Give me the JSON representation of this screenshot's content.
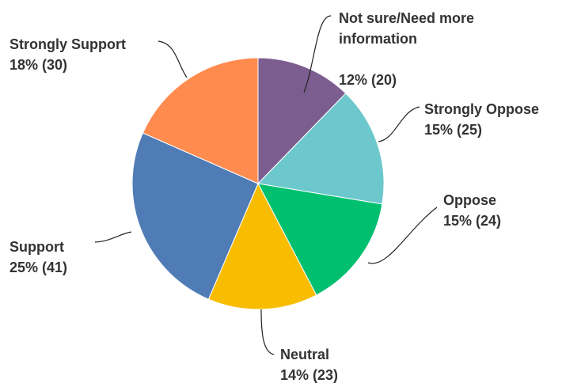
{
  "chart_data": {
    "type": "pie",
    "slices": [
      {
        "label_lines": [
          "Not sure/Need more",
          "information"
        ],
        "value_text": "12% (20)",
        "percent": 12,
        "count": 20,
        "color": "#7b5e8f"
      },
      {
        "label_lines": [
          "Strongly Oppose"
        ],
        "value_text": "15% (25)",
        "percent": 15,
        "count": 25,
        "color": "#6cc8cc"
      },
      {
        "label_lines": [
          "Oppose"
        ],
        "value_text": "15% (24)",
        "percent": 15,
        "count": 24,
        "color": "#00bf6f"
      },
      {
        "label_lines": [
          "Neutral"
        ],
        "value_text": "14% (23)",
        "percent": 14,
        "count": 23,
        "color": "#f8bd00"
      },
      {
        "label_lines": [
          "Support"
        ],
        "value_text": "25% (41)",
        "percent": 25,
        "count": 41,
        "color": "#507cb6"
      },
      {
        "label_lines": [
          "Strongly Support"
        ],
        "value_text": "18% (30)",
        "percent": 18,
        "count": 30,
        "color": "#ff8b4f"
      }
    ]
  }
}
